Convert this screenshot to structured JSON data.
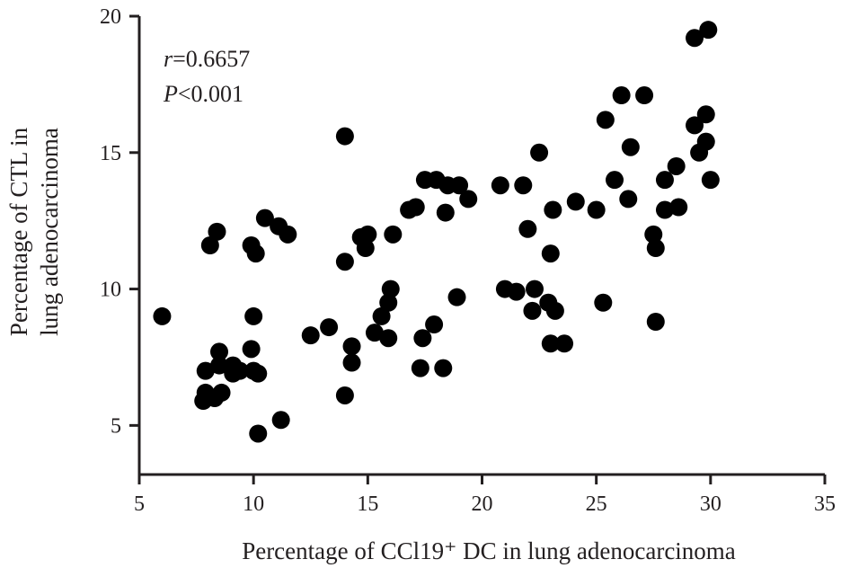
{
  "chart_data": {
    "type": "scatter",
    "xlabel": "Percentage of CCl19⁺ DC in lung adenocarcinoma",
    "ylabel_line1": "Percentage of CTL in",
    "ylabel_line2": "lung adenocarcinoma",
    "xlim": [
      5,
      35
    ],
    "ylim": [
      3.2,
      20
    ],
    "xticks": [
      5,
      10,
      15,
      20,
      25,
      30,
      35
    ],
    "yticks": [
      5,
      10,
      15,
      20
    ],
    "grid": false,
    "annotation": {
      "r_symbol": "r",
      "r_value": "=0.6657",
      "p_symbol": "P",
      "p_value": "<0.001"
    },
    "marker_color": "#000000",
    "points": [
      [
        6.0,
        9.0
      ],
      [
        7.8,
        5.9
      ],
      [
        7.9,
        6.2
      ],
      [
        7.9,
        7.0
      ],
      [
        8.1,
        11.6
      ],
      [
        8.3,
        6.0
      ],
      [
        8.4,
        12.1
      ],
      [
        8.5,
        7.7
      ],
      [
        8.5,
        7.2
      ],
      [
        8.6,
        6.2
      ],
      [
        9.1,
        6.9
      ],
      [
        9.1,
        7.2
      ],
      [
        9.4,
        7.0
      ],
      [
        9.9,
        7.8
      ],
      [
        9.9,
        11.6
      ],
      [
        10.0,
        9.0
      ],
      [
        10.0,
        7.0
      ],
      [
        10.1,
        11.3
      ],
      [
        10.2,
        6.9
      ],
      [
        10.2,
        4.7
      ],
      [
        10.5,
        12.6
      ],
      [
        11.1,
        12.3
      ],
      [
        11.2,
        5.2
      ],
      [
        11.5,
        12.0
      ],
      [
        12.5,
        8.3
      ],
      [
        13.3,
        8.6
      ],
      [
        14.0,
        15.6
      ],
      [
        14.0,
        11.0
      ],
      [
        14.0,
        6.1
      ],
      [
        14.3,
        7.9
      ],
      [
        14.3,
        7.3
      ],
      [
        14.7,
        11.9
      ],
      [
        14.9,
        11.5
      ],
      [
        15.0,
        12.0
      ],
      [
        15.3,
        8.4
      ],
      [
        15.6,
        9.0
      ],
      [
        15.9,
        9.5
      ],
      [
        15.9,
        8.2
      ],
      [
        16.0,
        10.0
      ],
      [
        16.1,
        12.0
      ],
      [
        16.8,
        12.9
      ],
      [
        17.1,
        13.0
      ],
      [
        17.3,
        7.1
      ],
      [
        17.4,
        8.2
      ],
      [
        17.5,
        14.0
      ],
      [
        17.9,
        8.7
      ],
      [
        18.0,
        14.0
      ],
      [
        18.3,
        7.1
      ],
      [
        18.4,
        12.8
      ],
      [
        18.5,
        13.8
      ],
      [
        18.9,
        9.7
      ],
      [
        19.0,
        13.8
      ],
      [
        19.4,
        13.3
      ],
      [
        20.8,
        13.8
      ],
      [
        21.0,
        10.0
      ],
      [
        21.5,
        9.9
      ],
      [
        21.8,
        13.8
      ],
      [
        22.0,
        12.2
      ],
      [
        22.2,
        9.2
      ],
      [
        22.3,
        10.0
      ],
      [
        22.5,
        15.0
      ],
      [
        22.9,
        9.5
      ],
      [
        23.0,
        11.3
      ],
      [
        23.0,
        8.0
      ],
      [
        23.1,
        12.9
      ],
      [
        23.2,
        9.2
      ],
      [
        23.6,
        8.0
      ],
      [
        24.1,
        13.2
      ],
      [
        25.0,
        12.9
      ],
      [
        25.3,
        9.5
      ],
      [
        25.4,
        16.2
      ],
      [
        25.8,
        14.0
      ],
      [
        26.1,
        17.1
      ],
      [
        26.4,
        13.3
      ],
      [
        26.5,
        15.2
      ],
      [
        27.1,
        17.1
      ],
      [
        27.5,
        12.0
      ],
      [
        27.6,
        11.5
      ],
      [
        27.6,
        8.8
      ],
      [
        28.0,
        12.9
      ],
      [
        28.0,
        14.0
      ],
      [
        28.5,
        14.5
      ],
      [
        28.6,
        13.0
      ],
      [
        29.3,
        19.2
      ],
      [
        29.3,
        16.0
      ],
      [
        29.5,
        15.0
      ],
      [
        29.8,
        16.4
      ],
      [
        29.8,
        15.4
      ],
      [
        29.9,
        19.5
      ],
      [
        30.0,
        14.0
      ]
    ]
  }
}
